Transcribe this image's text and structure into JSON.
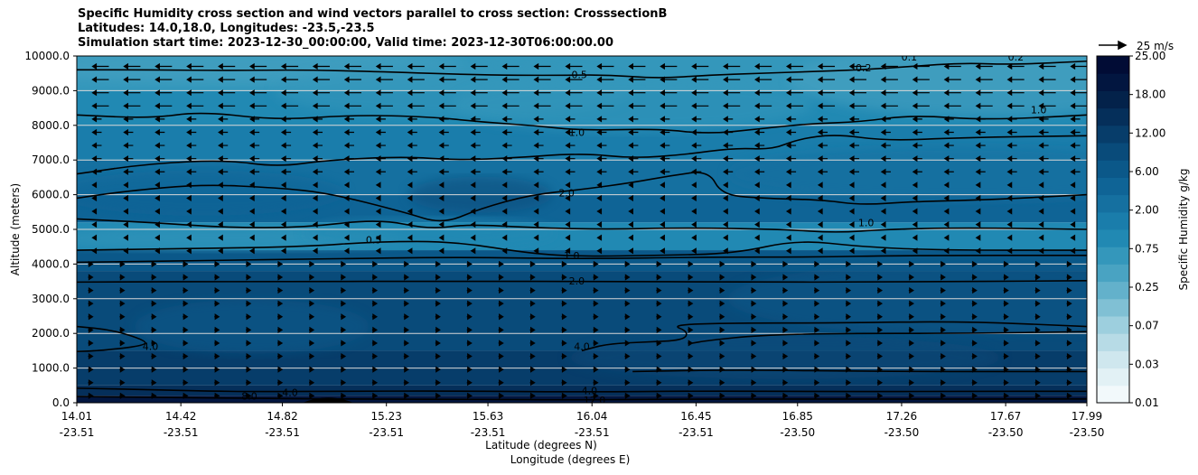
{
  "chart_data": {
    "type": "contourf",
    "title_lines": [
      "Specific Humidity cross section and wind vectors parallel to cross section: CrosssectionB",
      "Latitudes: 14.0,18.0, Longitudes: -23.5,-23.5",
      "Simulation start time: 2023-12-30_00:00:00, Valid time: 2023-12-30T06:00:00.00"
    ],
    "ylabel": "Altitude (meters)",
    "xlabel_lines": [
      "Latitude (degrees N)",
      "Longitude (degrees E)"
    ],
    "ylim": [
      0,
      10000
    ],
    "xlim": [
      14.01,
      17.99
    ],
    "y_ticks": [
      0,
      1000,
      2000,
      3000,
      4000,
      5000,
      6000,
      7000,
      8000,
      9000,
      10000
    ],
    "y_tick_labels": [
      "0.0",
      "1000.0",
      "2000.0",
      "3000.0",
      "4000.0",
      "5000.0",
      "6000.0",
      "7000.0",
      "8000.0",
      "9000.0",
      "10000.0"
    ],
    "x_ticks": [
      {
        "lat": 14.01,
        "lat_label": "14.01",
        "lon_label": "-23.51"
      },
      {
        "lat": 14.42,
        "lat_label": "14.42",
        "lon_label": "-23.51"
      },
      {
        "lat": 14.82,
        "lat_label": "14.82",
        "lon_label": "-23.51"
      },
      {
        "lat": 15.23,
        "lat_label": "15.23",
        "lon_label": "-23.51"
      },
      {
        "lat": 15.63,
        "lat_label": "15.63",
        "lon_label": "-23.51"
      },
      {
        "lat": 16.04,
        "lat_label": "16.04",
        "lon_label": "-23.51"
      },
      {
        "lat": 16.45,
        "lat_label": "16.45",
        "lon_label": "-23.51"
      },
      {
        "lat": 16.85,
        "lat_label": "16.85",
        "lon_label": "-23.50"
      },
      {
        "lat": 17.26,
        "lat_label": "17.26",
        "lon_label": "-23.50"
      },
      {
        "lat": 17.67,
        "lat_label": "17.67",
        "lon_label": "-23.50"
      },
      {
        "lat": 17.99,
        "lat_label": "17.99",
        "lon_label": "-23.50"
      }
    ],
    "grid": "horizontal",
    "colorbar": {
      "label": "Specific Humidity g/kg",
      "levels": [
        0.01,
        0.03,
        0.07,
        0.25,
        0.75,
        2.0,
        6.0,
        18.0,
        25.0
      ],
      "tick_labels": [
        "0.01",
        "0.03",
        "0.07",
        "0.25",
        "0.75",
        "2.00",
        "6.00",
        "18.00",
        "25.00"
      ],
      "extra_tick_labels": [
        "12.00"
      ],
      "colors": [
        "#f2f9fb",
        "#e2f1f5",
        "#cfe7ee",
        "#b7dbe6",
        "#9dcfde",
        "#80c0d4",
        "#63b1cb",
        "#49a3c2",
        "#3497bb",
        "#2189b3",
        "#1a7dab",
        "#1570a0",
        "#0f6496",
        "#0b5889",
        "#094b7a",
        "#073d6a",
        "#052f5a",
        "#03224a",
        "#021640",
        "#010c35"
      ]
    },
    "wind_reference": {
      "label": "25 m/s",
      "speed": 25
    },
    "contour_labels": [
      {
        "text": "0.5",
        "lat": 15.99,
        "alt": 9460
      },
      {
        "text": "1.0",
        "lat": 15.98,
        "alt": 7800
      },
      {
        "text": "2.0",
        "lat": 15.94,
        "alt": 6050
      },
      {
        "text": "0.5",
        "lat": 15.18,
        "alt": 4700
      },
      {
        "text": "1.0",
        "lat": 15.96,
        "alt": 4250
      },
      {
        "text": "2.0",
        "lat": 15.98,
        "alt": 3520
      },
      {
        "text": "4.0",
        "lat": 14.3,
        "alt": 1630
      },
      {
        "text": "4.0",
        "lat": 16.0,
        "alt": 1630
      },
      {
        "text": "1.0",
        "lat": 17.12,
        "alt": 5200
      },
      {
        "text": "0.2",
        "lat": 17.11,
        "alt": 9660
      },
      {
        "text": "0.1",
        "lat": 17.29,
        "alt": 9970
      },
      {
        "text": "0.2",
        "lat": 17.71,
        "alt": 9970
      },
      {
        "text": "1.0",
        "lat": 17.8,
        "alt": 8450
      },
      {
        "text": "8.0",
        "lat": 14.69,
        "alt": 190
      },
      {
        "text": "4.0",
        "lat": 14.85,
        "alt": 300
      },
      {
        "text": "4.0",
        "lat": 16.03,
        "alt": 350
      },
      {
        "text": "12.0",
        "lat": 16.05,
        "alt": 80
      }
    ],
    "contours": [
      {
        "level": "0.5",
        "points": [
          [
            14.01,
            9600
          ],
          [
            14.3,
            9600
          ],
          [
            14.6,
            9580
          ],
          [
            14.9,
            9600
          ],
          [
            15.2,
            9550
          ],
          [
            15.6,
            9450
          ],
          [
            15.9,
            9440
          ],
          [
            16.1,
            9460
          ],
          [
            16.3,
            9350
          ],
          [
            16.5,
            9450
          ],
          [
            16.7,
            9500
          ],
          [
            16.9,
            9550
          ],
          [
            17.1,
            9600
          ],
          [
            17.3,
            9700
          ],
          [
            17.5,
            9800
          ],
          [
            17.7,
            9750
          ],
          [
            17.99,
            9850
          ]
        ]
      },
      {
        "level": "1.0",
        "points": [
          [
            14.01,
            8300
          ],
          [
            14.3,
            8200
          ],
          [
            14.5,
            8400
          ],
          [
            14.8,
            8150
          ],
          [
            15.1,
            8300
          ],
          [
            15.4,
            8250
          ],
          [
            15.6,
            8100
          ],
          [
            15.8,
            8000
          ],
          [
            16.0,
            7850
          ],
          [
            16.3,
            7900
          ],
          [
            16.5,
            7750
          ],
          [
            16.7,
            7900
          ],
          [
            16.9,
            8050
          ],
          [
            17.1,
            8100
          ],
          [
            17.3,
            8300
          ],
          [
            17.6,
            8150
          ],
          [
            17.99,
            8300
          ]
        ]
      },
      {
        "level": "1.0",
        "points": [
          [
            14.01,
            6600
          ],
          [
            14.3,
            6900
          ],
          [
            14.6,
            7000
          ],
          [
            14.8,
            6800
          ],
          [
            15.0,
            7000
          ],
          [
            15.3,
            7100
          ],
          [
            15.5,
            7000
          ],
          [
            15.7,
            7050
          ],
          [
            16.0,
            7200
          ],
          [
            16.2,
            7050
          ],
          [
            16.4,
            7150
          ],
          [
            16.6,
            7350
          ],
          [
            16.75,
            7300
          ],
          [
            16.85,
            7600
          ],
          [
            17.0,
            7750
          ],
          [
            17.2,
            7550
          ],
          [
            17.5,
            7650
          ],
          [
            17.99,
            7700
          ]
        ]
      },
      {
        "level": "2.0",
        "points": [
          [
            14.01,
            5900
          ],
          [
            14.2,
            6100
          ],
          [
            14.5,
            6300
          ],
          [
            14.8,
            6200
          ],
          [
            15.0,
            6050
          ],
          [
            15.3,
            5500
          ],
          [
            15.45,
            5150
          ],
          [
            15.6,
            5600
          ],
          [
            15.8,
            6000
          ],
          [
            16.0,
            6150
          ],
          [
            16.2,
            6350
          ],
          [
            16.35,
            6550
          ],
          [
            16.5,
            6700
          ],
          [
            16.55,
            6000
          ],
          [
            16.7,
            5900
          ],
          [
            16.95,
            5850
          ],
          [
            17.1,
            5700
          ],
          [
            17.3,
            5800
          ],
          [
            17.6,
            5850
          ],
          [
            17.99,
            6000
          ]
        ]
      },
      {
        "level": "1.0",
        "points": [
          [
            14.01,
            5300
          ],
          [
            14.3,
            5200
          ],
          [
            14.6,
            5050
          ],
          [
            14.9,
            5050
          ],
          [
            15.2,
            5300
          ],
          [
            15.4,
            5000
          ],
          [
            15.55,
            5150
          ],
          [
            15.8,
            5050
          ],
          [
            16.1,
            5000
          ],
          [
            16.4,
            5050
          ],
          [
            16.8,
            5000
          ],
          [
            17.0,
            4900
          ],
          [
            17.2,
            5000
          ],
          [
            17.5,
            5050
          ],
          [
            17.99,
            5000
          ]
        ]
      },
      {
        "level": "0.5",
        "points": [
          [
            14.01,
            4400
          ],
          [
            14.5,
            4450
          ],
          [
            14.9,
            4500
          ],
          [
            15.2,
            4650
          ],
          [
            15.5,
            4650
          ],
          [
            15.8,
            4300
          ],
          [
            16.0,
            4220
          ],
          [
            16.3,
            4250
          ],
          [
            16.6,
            4300
          ],
          [
            16.85,
            4700
          ],
          [
            17.1,
            4500
          ],
          [
            17.4,
            4400
          ],
          [
            17.99,
            4400
          ]
        ]
      },
      {
        "level": "1.0",
        "points": [
          [
            14.01,
            4050
          ],
          [
            14.5,
            4100
          ],
          [
            15.0,
            4150
          ],
          [
            15.5,
            4200
          ],
          [
            16.0,
            4150
          ],
          [
            16.5,
            4200
          ],
          [
            16.9,
            4200
          ],
          [
            17.3,
            4250
          ],
          [
            17.99,
            4250
          ]
        ]
      },
      {
        "level": "2.0",
        "points": [
          [
            14.01,
            3480
          ],
          [
            14.8,
            3500
          ],
          [
            15.5,
            3500
          ],
          [
            16.1,
            3500
          ],
          [
            16.6,
            3480
          ],
          [
            17.2,
            3480
          ],
          [
            17.99,
            3520
          ]
        ]
      },
      {
        "level": "4.0",
        "points": [
          [
            14.01,
            2200
          ],
          [
            14.15,
            2100
          ],
          [
            14.28,
            1800
          ],
          [
            14.28,
            1650
          ],
          [
            14.1,
            1500
          ],
          [
            14.01,
            1480
          ]
        ]
      },
      {
        "level": "4.0",
        "points": [
          [
            16.0,
            1500
          ],
          [
            16.1,
            1700
          ],
          [
            16.25,
            1750
          ],
          [
            16.4,
            1800
          ],
          [
            16.42,
            2050
          ],
          [
            16.35,
            2250
          ],
          [
            16.6,
            2300
          ],
          [
            17.0,
            2300
          ],
          [
            17.5,
            2350
          ],
          [
            17.99,
            2200
          ]
        ]
      },
      {
        "level": "4.0",
        "points": [
          [
            16.42,
            1700
          ],
          [
            16.5,
            1800
          ],
          [
            16.7,
            1950
          ],
          [
            17.0,
            2000
          ],
          [
            17.5,
            2000
          ],
          [
            17.99,
            2050
          ]
        ]
      },
      {
        "level": "4.0",
        "points": [
          [
            16.2,
            900
          ],
          [
            16.6,
            950
          ],
          [
            17.2,
            900
          ],
          [
            17.99,
            900
          ]
        ]
      },
      {
        "level": "8.0",
        "points": [
          [
            14.01,
            420
          ],
          [
            14.3,
            380
          ],
          [
            14.6,
            320
          ],
          [
            15.0,
            330
          ],
          [
            15.5,
            340
          ],
          [
            16.0,
            310
          ],
          [
            16.5,
            340
          ],
          [
            17.0,
            320
          ],
          [
            17.5,
            330
          ],
          [
            17.99,
            330
          ]
        ]
      },
      {
        "level": "12.0",
        "points": [
          [
            14.01,
            180
          ],
          [
            14.4,
            150
          ],
          [
            14.8,
            120
          ],
          [
            15.23,
            100
          ],
          [
            15.6,
            100
          ],
          [
            16.0,
            80
          ],
          [
            16.5,
            110
          ],
          [
            17.0,
            100
          ],
          [
            17.99,
            110
          ]
        ]
      }
    ]
  }
}
